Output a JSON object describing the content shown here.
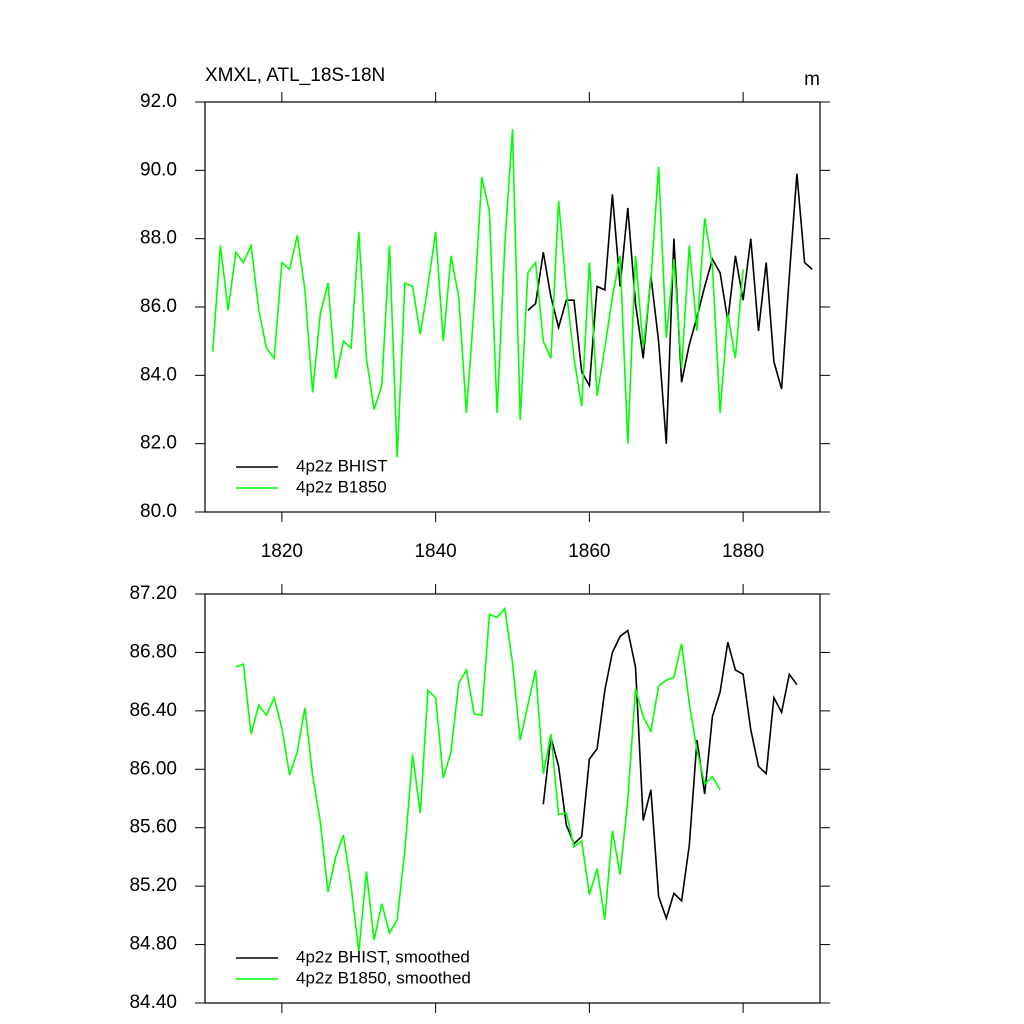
{
  "chart_data": [
    {
      "type": "line",
      "title": "XMXL, ATL_18S-18N",
      "units": "m",
      "x": [
        1811,
        1812,
        1813,
        1814,
        1815,
        1816,
        1817,
        1818,
        1819,
        1820,
        1821,
        1822,
        1823,
        1824,
        1825,
        1826,
        1827,
        1828,
        1829,
        1830,
        1831,
        1832,
        1833,
        1834,
        1835,
        1836,
        1837,
        1838,
        1839,
        1840,
        1841,
        1842,
        1843,
        1844,
        1845,
        1846,
        1847,
        1848,
        1849,
        1850,
        1851,
        1852,
        1853,
        1854,
        1855,
        1856,
        1857,
        1858,
        1859,
        1860,
        1861,
        1862,
        1863,
        1864,
        1865,
        1866,
        1867,
        1868,
        1869,
        1870,
        1871,
        1872,
        1873,
        1874,
        1875,
        1876,
        1877,
        1878,
        1879,
        1880,
        1881,
        1882,
        1883,
        1884,
        1885,
        1886,
        1887,
        1888,
        1889
      ],
      "series": [
        {
          "name": "4p2z BHIST",
          "color": "#000000",
          "values": [
            null,
            null,
            null,
            null,
            null,
            null,
            null,
            null,
            null,
            null,
            null,
            null,
            null,
            null,
            null,
            null,
            null,
            null,
            null,
            null,
            null,
            null,
            null,
            null,
            null,
            null,
            null,
            null,
            null,
            null,
            null,
            null,
            null,
            null,
            null,
            null,
            null,
            null,
            null,
            null,
            null,
            85.9,
            86.1,
            87.6,
            86.3,
            85.4,
            86.2,
            86.2,
            84.1,
            83.7,
            86.6,
            86.5,
            89.3,
            86.6,
            88.9,
            86.1,
            84.5,
            86.9,
            85.0,
            82.0,
            88.0,
            83.8,
            84.9,
            85.7,
            86.6,
            87.4,
            87.0,
            85.6,
            87.5,
            86.2,
            88.0,
            85.3,
            87.3,
            84.4,
            83.6,
            86.9,
            89.9,
            87.3,
            87.1
          ]
        },
        {
          "name": "4p2z B1850",
          "color": "#00ff00",
          "values": [
            84.7,
            87.8,
            85.9,
            87.6,
            87.3,
            87.8,
            85.9,
            84.8,
            84.5,
            87.3,
            87.1,
            88.1,
            86.5,
            83.5,
            85.8,
            86.7,
            83.9,
            85.0,
            84.8,
            88.2,
            84.5,
            83.0,
            83.7,
            87.8,
            81.6,
            86.7,
            86.6,
            85.2,
            86.6,
            88.2,
            85.0,
            87.5,
            86.3,
            82.9,
            86.0,
            89.8,
            88.8,
            82.9,
            87.8,
            91.2,
            82.7,
            87.0,
            87.3,
            85.0,
            84.5,
            89.1,
            86.5,
            84.5,
            83.1,
            87.3,
            83.4,
            84.8,
            86.3,
            87.5,
            82.0,
            87.5,
            84.8,
            86.8,
            90.1,
            85.1,
            87.4,
            84.2,
            87.8,
            85.3,
            88.6,
            87.2,
            82.9,
            85.8,
            84.5,
            87.1,
            null,
            null,
            null,
            null,
            null,
            null,
            null,
            null,
            null
          ]
        }
      ],
      "xlim": [
        1810,
        1890
      ],
      "xticks": [
        1820,
        1840,
        1860,
        1880
      ],
      "show_xtick_labels": true,
      "ylim": [
        80,
        92
      ],
      "yticks": [
        {
          "value": 80,
          "label": "80.0"
        },
        {
          "value": 82,
          "label": "82.0"
        },
        {
          "value": 84,
          "label": "84.0"
        },
        {
          "value": 86,
          "label": "86.0"
        },
        {
          "value": 88,
          "label": "88.0"
        },
        {
          "value": 90,
          "label": "90.0"
        },
        {
          "value": 92,
          "label": "92.0"
        }
      ],
      "legend": "lower left"
    },
    {
      "type": "line",
      "x": [
        1811,
        1812,
        1813,
        1814,
        1815,
        1816,
        1817,
        1818,
        1819,
        1820,
        1821,
        1822,
        1823,
        1824,
        1825,
        1826,
        1827,
        1828,
        1829,
        1830,
        1831,
        1832,
        1833,
        1834,
        1835,
        1836,
        1837,
        1838,
        1839,
        1840,
        1841,
        1842,
        1843,
        1844,
        1845,
        1846,
        1847,
        1848,
        1849,
        1850,
        1851,
        1852,
        1853,
        1854,
        1855,
        1856,
        1857,
        1858,
        1859,
        1860,
        1861,
        1862,
        1863,
        1864,
        1865,
        1866,
        1867,
        1868,
        1869,
        1870,
        1871,
        1872,
        1873,
        1874,
        1875,
        1876,
        1877,
        1878,
        1879,
        1880,
        1881,
        1882,
        1883,
        1884,
        1885,
        1886,
        1887,
        1888,
        1889
      ],
      "series": [
        {
          "name": "4p2z BHIST, smoothed",
          "color": "#000000",
          "values": [
            null,
            null,
            null,
            null,
            null,
            null,
            null,
            null,
            null,
            null,
            null,
            null,
            null,
            null,
            null,
            null,
            null,
            null,
            null,
            null,
            null,
            null,
            null,
            null,
            null,
            null,
            null,
            null,
            null,
            null,
            null,
            null,
            null,
            null,
            null,
            null,
            null,
            null,
            null,
            null,
            null,
            null,
            null,
            85.76,
            86.22,
            86.02,
            85.62,
            85.49,
            85.54,
            86.07,
            86.14,
            86.54,
            86.8,
            86.91,
            86.95,
            86.7,
            85.65,
            85.86,
            85.13,
            84.98,
            85.15,
            85.1,
            85.48,
            86.2,
            85.83,
            86.36,
            86.53,
            86.87,
            86.68,
            86.65,
            86.27,
            86.02,
            85.97,
            86.49,
            86.39,
            86.65,
            86.58,
            null,
            null
          ]
        },
        {
          "name": "4p2z B1850, smoothed",
          "color": "#00ff00",
          "values": [
            null,
            null,
            null,
            86.7,
            86.72,
            86.24,
            86.44,
            86.37,
            86.49,
            86.28,
            85.96,
            86.12,
            86.42,
            85.96,
            85.64,
            85.16,
            85.4,
            85.55,
            85.2,
            84.75,
            85.3,
            84.83,
            85.08,
            84.88,
            84.97,
            85.45,
            86.1,
            85.7,
            86.54,
            86.49,
            85.94,
            86.12,
            86.59,
            86.68,
            86.38,
            86.37,
            87.06,
            87.04,
            87.1,
            86.73,
            86.2,
            86.44,
            86.68,
            85.97,
            86.24,
            85.69,
            85.7,
            85.47,
            85.51,
            85.14,
            85.32,
            84.97,
            85.58,
            85.28,
            85.79,
            86.55,
            86.36,
            86.26,
            86.57,
            86.61,
            86.63,
            86.86,
            86.45,
            86.13,
            85.9,
            85.95,
            85.86,
            null,
            null,
            null,
            null,
            null,
            null,
            null,
            null,
            null,
            null,
            null,
            null
          ]
        }
      ],
      "xlim": [
        1810,
        1890
      ],
      "xticks": [
        1820,
        1840,
        1860,
        1880
      ],
      "show_xtick_labels": false,
      "ylim": [
        84.4,
        87.2
      ],
      "yticks": [
        {
          "value": 84.4,
          "label": "84.40"
        },
        {
          "value": 84.8,
          "label": "84.80"
        },
        {
          "value": 85.2,
          "label": "85.20"
        },
        {
          "value": 85.6,
          "label": "85.60"
        },
        {
          "value": 86.0,
          "label": "86.00"
        },
        {
          "value": 86.4,
          "label": "86.40"
        },
        {
          "value": 86.8,
          "label": "86.80"
        },
        {
          "value": 87.2,
          "label": "87.20"
        }
      ],
      "legend": "lower left"
    }
  ]
}
